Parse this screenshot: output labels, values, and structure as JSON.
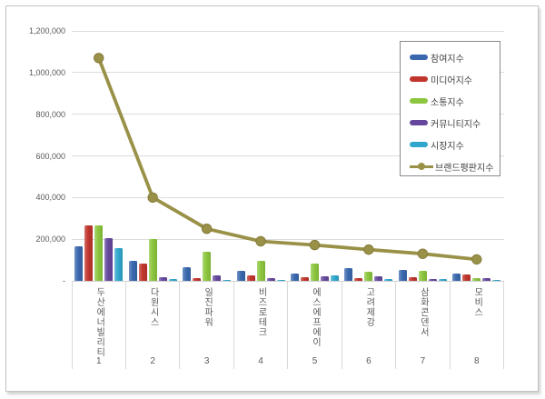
{
  "chart_data": {
    "type": "bar",
    "subtype": "grouped-bars-with-line-overlay",
    "title": "",
    "xlabel": "",
    "ylabel": "",
    "categories": [
      "두산에너빌리티",
      "다원시스",
      "일진파워",
      "비즈로테크",
      "에스에프에이",
      "고려제강",
      "삼화콘덴서",
      "모비스"
    ],
    "category_ranks": [
      "1",
      "2",
      "3",
      "4",
      "5",
      "6",
      "7",
      "8"
    ],
    "series": [
      {
        "name": "참여지수",
        "type": "bar",
        "color": "#3a68ae",
        "values": [
          165000,
          95000,
          67000,
          50000,
          36000,
          60000,
          53000,
          35000
        ]
      },
      {
        "name": "미디어지수",
        "type": "bar",
        "color": "#c0352c",
        "values": [
          265000,
          85000,
          15000,
          27000,
          17000,
          12000,
          17000,
          29000
        ]
      },
      {
        "name": "소통지수",
        "type": "bar",
        "color": "#8cc63e",
        "values": [
          265000,
          200000,
          141000,
          96000,
          84000,
          45000,
          46000,
          14000
        ]
      },
      {
        "name": "커뮤니티지수",
        "type": "bar",
        "color": "#65489d",
        "values": [
          207000,
          17000,
          25000,
          13000,
          22000,
          24000,
          10000,
          14000
        ]
      },
      {
        "name": "시장지수",
        "type": "bar",
        "color": "#2fa7cc",
        "values": [
          158000,
          8000,
          5000,
          4000,
          27000,
          9000,
          10000,
          3000
        ]
      },
      {
        "name": "브랜드평판지수",
        "type": "line",
        "color": "#9a9148",
        "values": [
          1070000,
          400000,
          250000,
          190000,
          172000,
          150000,
          130000,
          103000
        ]
      }
    ],
    "y_axis": {
      "min": 0,
      "max": 1200000,
      "step": 200000,
      "tick_labels_bottom_to_top": [
        "-",
        "200,000",
        "400,000",
        "600,000",
        "800,000",
        "1,000,000",
        "1,200,000"
      ]
    },
    "grid": true,
    "legend_position": "top-right"
  },
  "colors": {
    "gridline": "#dcdcdc",
    "axis_text": "#595959",
    "legend_border": "#8a8a8a",
    "frame_border": "#c3c3c3",
    "line_series": "#9a9148",
    "line_marker_edge": "#857c3d"
  }
}
